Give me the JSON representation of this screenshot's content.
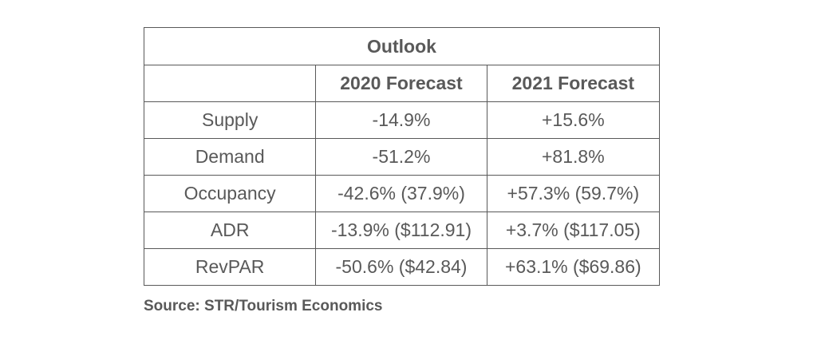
{
  "table": {
    "title": "Outlook",
    "columns": [
      "",
      "2020 Forecast",
      "2021 Forecast"
    ],
    "rows": [
      {
        "label": "Supply",
        "f2020": "-14.9%",
        "f2021": "+15.6%"
      },
      {
        "label": "Demand",
        "f2020": "-51.2%",
        "f2021": "+81.8%"
      },
      {
        "label": "Occupancy",
        "f2020": "-42.6% (37.9%)",
        "f2021": "+57.3% (59.7%)"
      },
      {
        "label": "ADR",
        "f2020": "-13.9% ($112.91)",
        "f2021": "+3.7% ($117.05)"
      },
      {
        "label": "RevPAR",
        "f2020": "-50.6% ($42.84)",
        "f2021": "+63.1% ($69.86)"
      }
    ]
  },
  "source": "Source: STR/Tourism Economics"
}
